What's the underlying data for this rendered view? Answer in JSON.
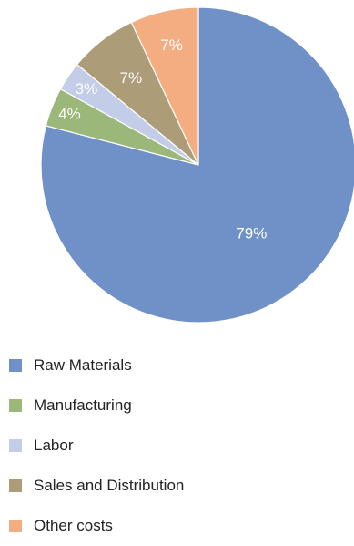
{
  "chart_data": {
    "type": "pie",
    "title": "",
    "start_angle": "12 o'clock",
    "direction": "clockwise",
    "legend_position": "bottom-left",
    "slices": [
      {
        "label": "Raw Materials",
        "value": 79,
        "value_label": "79%",
        "color": "#6f91c7"
      },
      {
        "label": "Manufacturing",
        "value": 4,
        "value_label": "4%",
        "color": "#9bb77a"
      },
      {
        "label": "Labor",
        "value": 3,
        "value_label": "3%",
        "color": "#c4cde8"
      },
      {
        "label": "Sales and Distribution",
        "value": 7,
        "value_label": "7%",
        "color": "#ad9c78"
      },
      {
        "label": "Other costs",
        "value": 7,
        "value_label": "7%",
        "color": "#f4ad80"
      }
    ]
  }
}
